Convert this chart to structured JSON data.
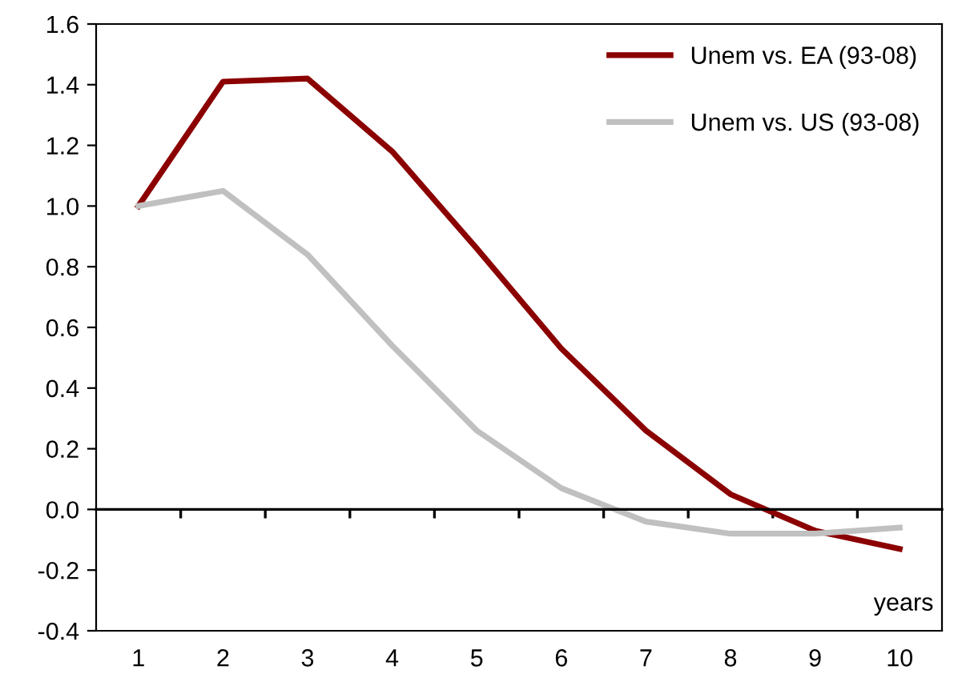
{
  "chart_data": {
    "type": "line",
    "categories": [
      "1",
      "2",
      "3",
      "4",
      "5",
      "6",
      "7",
      "8",
      "9",
      "10"
    ],
    "series": [
      {
        "name": "Unem vs. EA (93-08)",
        "color": "#8b0000",
        "values": [
          1.0,
          1.41,
          1.42,
          1.18,
          0.86,
          0.53,
          0.26,
          0.05,
          -0.07,
          -0.13
        ]
      },
      {
        "name": "Unem vs. US (93-08)",
        "color": "#c0c0c0",
        "values": [
          1.0,
          1.05,
          0.84,
          0.54,
          0.26,
          0.07,
          -0.04,
          -0.08,
          -0.08,
          -0.06
        ]
      }
    ],
    "ylim": [
      -0.4,
      1.6
    ],
    "yticks": [
      {
        "value": -0.4,
        "label": "-0.4"
      },
      {
        "value": -0.2,
        "label": "-0.2"
      },
      {
        "value": 0,
        "label": "0.0"
      },
      {
        "value": 0.2,
        "label": "0.2"
      },
      {
        "value": 0.4,
        "label": "0.4"
      },
      {
        "value": 0.6,
        "label": "0.6"
      },
      {
        "value": 0.8,
        "label": "0.8"
      },
      {
        "value": 1.0,
        "label": "1.0"
      },
      {
        "value": 1.2,
        "label": "1.2"
      },
      {
        "value": 1.4,
        "label": "1.4"
      },
      {
        "value": 1.6,
        "label": "1.6"
      }
    ],
    "annotations": [
      "years"
    ],
    "legend": "top right",
    "marker": "none",
    "line_style": "solid"
  }
}
